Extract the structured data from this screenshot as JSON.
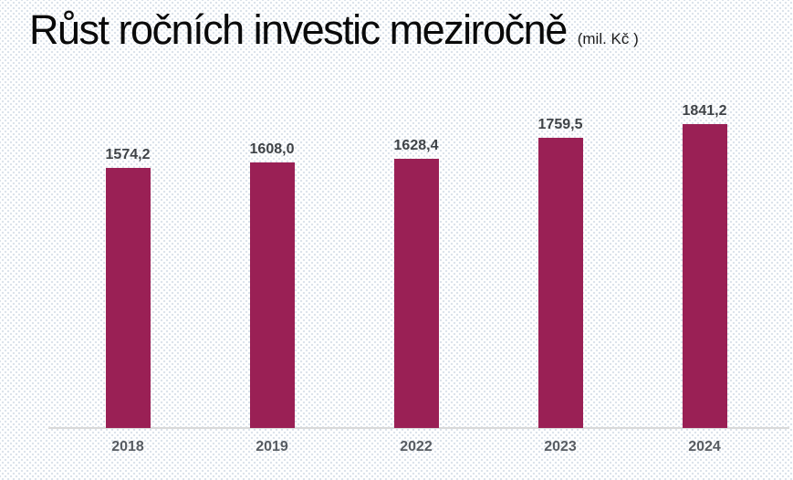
{
  "header": {
    "title": "Růst ročních investic meziročně",
    "unit": "(mil. Kč )"
  },
  "chart_data": {
    "type": "bar",
    "title": "Růst ročních investic meziročně",
    "subtitle_unit": "(mil. Kč )",
    "categories": [
      "2018",
      "2019",
      "2022",
      "2023",
      "2024"
    ],
    "values": [
      1574.2,
      1608.0,
      1628.4,
      1759.5,
      1841.2
    ],
    "value_labels": [
      "1574,2",
      "1608,0",
      "1628,4",
      "1759,5",
      "1841,2"
    ],
    "xlabel": "",
    "ylabel": "",
    "ylim": [
      0,
      2050
    ],
    "baseline": 0,
    "grid": false,
    "legend": null,
    "y_axis_visible": false,
    "bar_color": "#9a2055",
    "value_label_color": "#3f4347",
    "category_label_color": "#575c62",
    "axis_line_color": "#d9d9d9"
  }
}
